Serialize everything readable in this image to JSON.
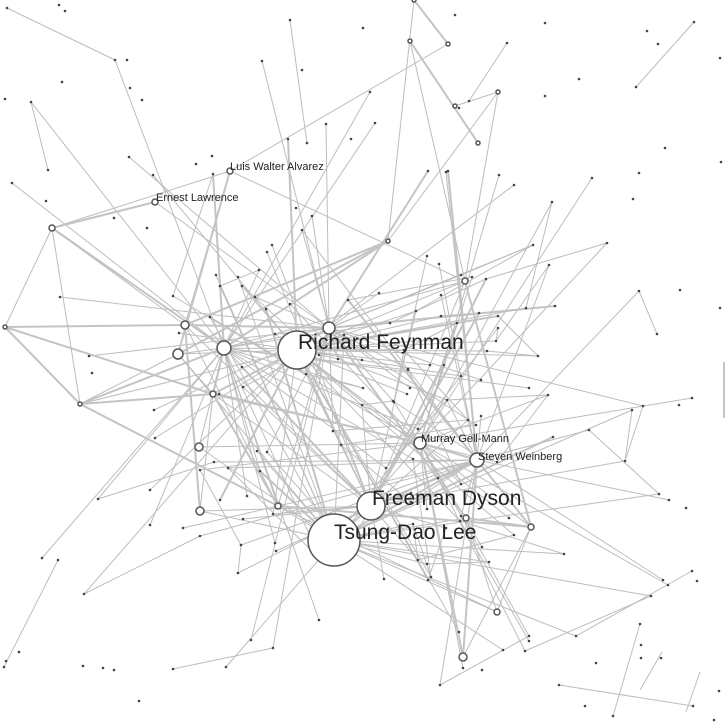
{
  "labels": {
    "feynman": "Richard Feynman",
    "dyson": "Freeman Dyson",
    "lee": "Tsung-Dao Lee",
    "gellmann": "Murray Gell-Mann",
    "weinberg": "Steven Weinberg",
    "alvarez": "Luis Walter Alvarez",
    "lawrence": "Ernest Lawrence"
  },
  "colors": {
    "edge": "#bdbdbd",
    "node_stroke": "#555555",
    "node_fill": "#ffffff",
    "label": "#222222"
  }
}
